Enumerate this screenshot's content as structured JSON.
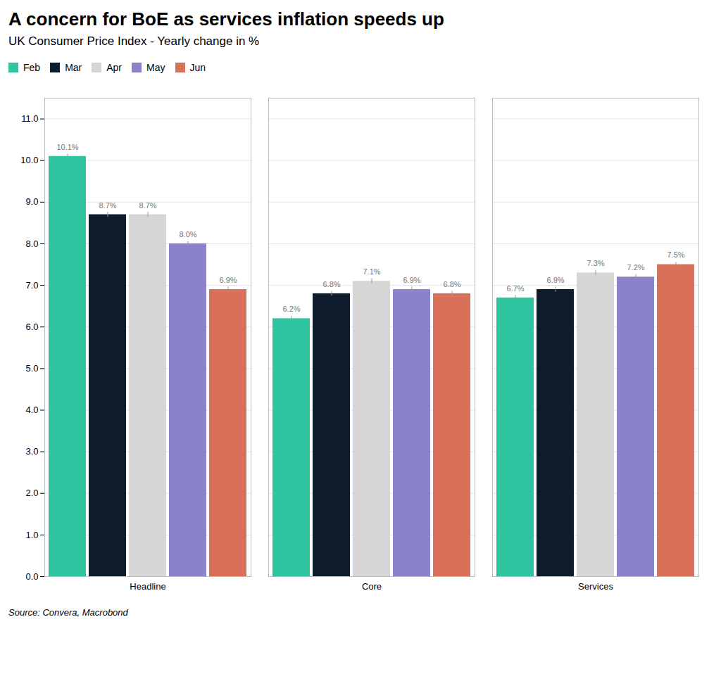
{
  "chart_data": {
    "type": "bar",
    "title": "A concern for BoE as services inflation speeds up",
    "subtitle": "UK Consumer Price Index - Yearly change in %",
    "source": "Source: Convera, Macrobond",
    "categories": [
      "Headline",
      "Core",
      "Services"
    ],
    "series": [
      {
        "name": "Feb",
        "color": "#2EC4A0",
        "values": [
          10.1,
          6.2,
          6.7
        ],
        "value_labels": [
          "10.1%",
          "6.2%",
          "6.7%"
        ],
        "error": [
          0.06,
          0.06,
          0.06
        ]
      },
      {
        "name": "Mar",
        "color": "#0D1B2A",
        "values": [
          8.7,
          6.8,
          6.9
        ],
        "value_labels": [
          "8.7%",
          "6.8%",
          "6.9%"
        ],
        "error": [
          0.06,
          0.06,
          0.06
        ]
      },
      {
        "name": "Apr",
        "color": "#D6D6D6",
        "values": [
          8.7,
          7.1,
          7.3
        ],
        "value_labels": [
          "8.7%",
          "7.1%",
          "7.3%"
        ],
        "error": [
          0.06,
          0.06,
          0.06
        ]
      },
      {
        "name": "May",
        "color": "#8B83C9",
        "values": [
          8.0,
          6.9,
          7.2
        ],
        "value_labels": [
          "8.0%",
          "6.9%",
          "7.2%"
        ],
        "error": [
          0.06,
          0.06,
          0.06
        ]
      },
      {
        "name": "Jun",
        "color": "#D9705A",
        "values": [
          6.9,
          6.8,
          7.5
        ],
        "value_labels": [
          "6.9%",
          "6.8%",
          "7.5%"
        ],
        "error": [
          0.06,
          0.06,
          0.06
        ]
      }
    ],
    "ylim": [
      0,
      11.5
    ],
    "yticks": [
      {
        "value": 0,
        "label": "0.0"
      },
      {
        "value": 1,
        "label": "1.0"
      },
      {
        "value": 2,
        "label": "2.0"
      },
      {
        "value": 3,
        "label": "3.0"
      },
      {
        "value": 4,
        "label": "4.0"
      },
      {
        "value": 5,
        "label": "5.0"
      },
      {
        "value": 6,
        "label": "6.0"
      },
      {
        "value": 7,
        "label": "7.0"
      },
      {
        "value": 8,
        "label": "8.0"
      },
      {
        "value": 9,
        "label": "9.0"
      },
      {
        "value": 10,
        "label": "10.0"
      },
      {
        "value": 11,
        "label": "11.0"
      }
    ],
    "grid": true,
    "legend": "top",
    "data_labels": true
  }
}
